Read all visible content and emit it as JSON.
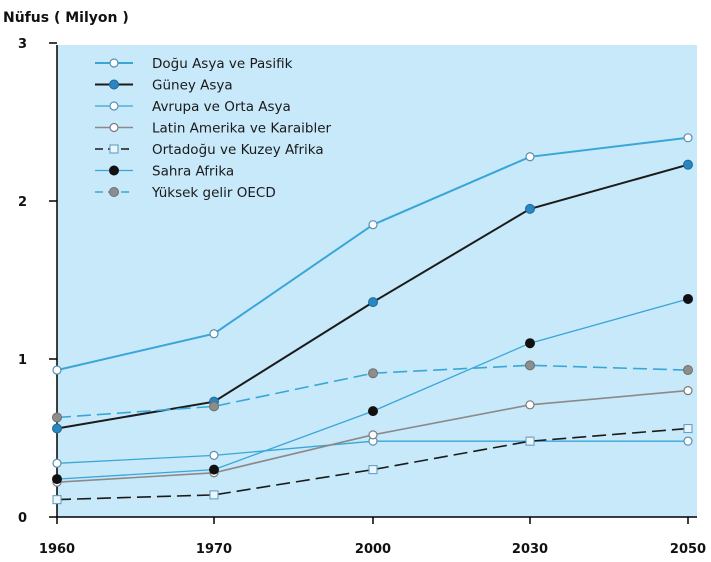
{
  "chart_data": {
    "type": "line",
    "title": "Nüfus ( Milyon )",
    "xlabel": "",
    "ylabel": "",
    "x": [
      "1960",
      "1970",
      "2000",
      "2030",
      "2050"
    ],
    "ylim": [
      0,
      3
    ],
    "yticks": [
      "0",
      "1",
      "2",
      "3"
    ],
    "grid": false,
    "legend_position": "top-left",
    "background_color": "#c7e9fa",
    "series": [
      {
        "name": "Doğu Asya ve Pasifik",
        "values": [
          0.93,
          1.16,
          1.85,
          2.28,
          2.4
        ],
        "color": "#3aa6d8",
        "dash": "solid",
        "marker": "open-circle",
        "width": 2
      },
      {
        "name": "Güney Asya",
        "values": [
          0.56,
          0.73,
          1.36,
          1.95,
          2.23
        ],
        "color": "#1b1b1b",
        "dash": "solid",
        "marker": "blue-dot",
        "width": 2
      },
      {
        "name": "Avrupa ve Orta Asya",
        "values": [
          0.34,
          0.39,
          0.48,
          0.48,
          0.48
        ],
        "color": "#3aa6d8",
        "dash": "solid",
        "marker": "open-circle",
        "width": 1.3
      },
      {
        "name": "Latin Amerika ve Karaibler",
        "values": [
          0.22,
          0.28,
          0.52,
          0.71,
          0.8
        ],
        "color": "#8a8a8a",
        "dash": "solid",
        "marker": "open-circle",
        "width": 1.6
      },
      {
        "name": "Ortadoğu ve Kuzey Afrika",
        "values": [
          0.11,
          0.14,
          0.3,
          0.48,
          0.56
        ],
        "color": "#1b1b1b",
        "dash": "dash",
        "marker": "open-square",
        "width": 1.6
      },
      {
        "name": "Sahra Afrika",
        "values": [
          0.24,
          0.3,
          0.67,
          1.1,
          1.38
        ],
        "color": "#3aa6d8",
        "dash": "solid",
        "marker": "black-dot",
        "width": 1.3
      },
      {
        "name": "Yüksek gelir OECD",
        "values": [
          0.63,
          0.7,
          0.91,
          0.96,
          0.93
        ],
        "color": "#3aa6d8",
        "dash": "dash",
        "marker": "gray-dot",
        "width": 1.6
      }
    ]
  }
}
